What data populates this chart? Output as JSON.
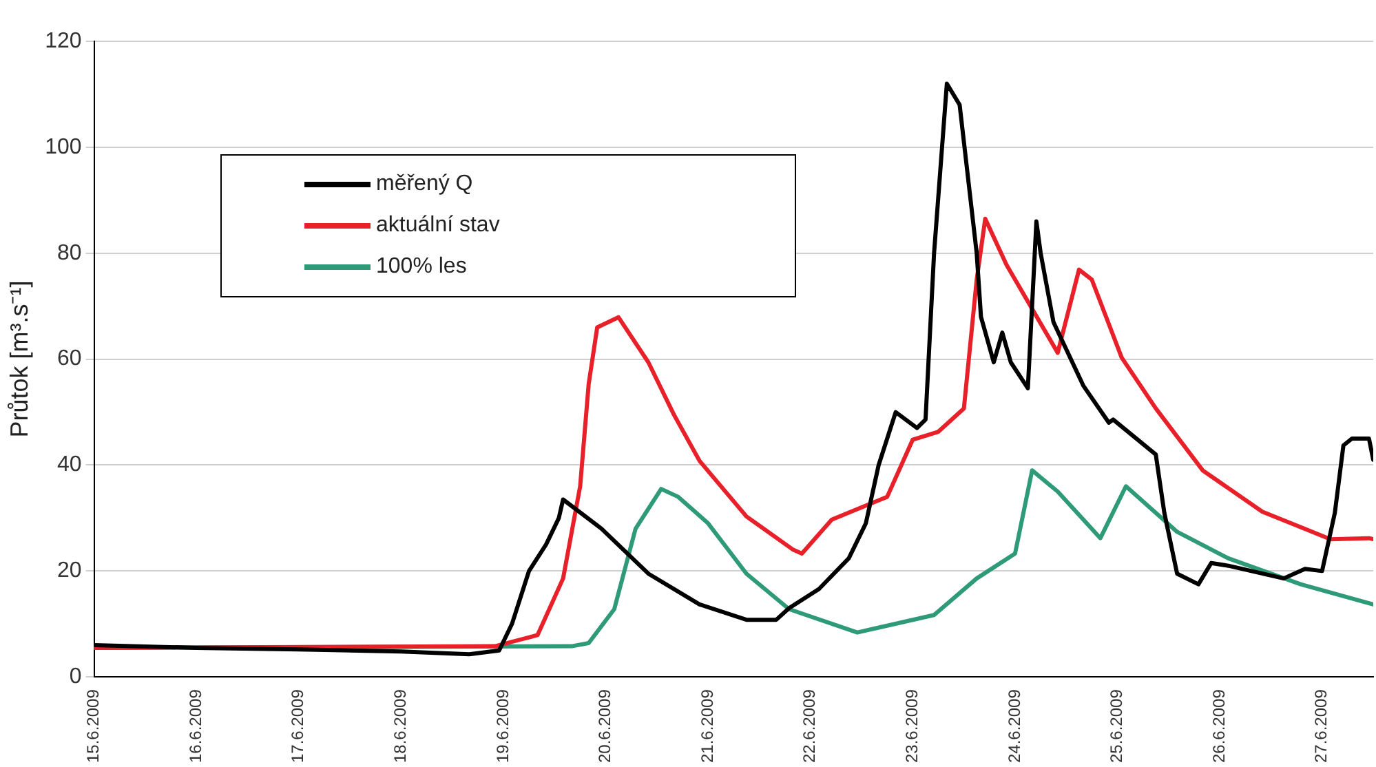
{
  "chart_data": {
    "type": "line",
    "ylabel": "Průtok [m³.s⁻¹]",
    "xlim": [
      "2009-06-15",
      "2009-06-27T12:00"
    ],
    "xticks": [
      {
        "value": "2009-06-15",
        "label": "15.6.2009"
      },
      {
        "value": "2009-06-16",
        "label": "16.6.2009"
      },
      {
        "value": "2009-06-17",
        "label": "17.6.2009"
      },
      {
        "value": "2009-06-18",
        "label": "18.6.2009"
      },
      {
        "value": "2009-06-19",
        "label": "19.6.2009"
      },
      {
        "value": "2009-06-20",
        "label": "20.6.2009"
      },
      {
        "value": "2009-06-21",
        "label": "21.6.2009"
      },
      {
        "value": "2009-06-22",
        "label": "22.6.2009"
      },
      {
        "value": "2009-06-23",
        "label": "23.6.2009"
      },
      {
        "value": "2009-06-24",
        "label": "24.6.2009"
      },
      {
        "value": "2009-06-25",
        "label": "25.6.2009"
      },
      {
        "value": "2009-06-26",
        "label": "26.6.2009"
      },
      {
        "value": "2009-06-27",
        "label": "27.6.2009"
      }
    ],
    "ylim": [
      0,
      120
    ],
    "yticks": [
      0,
      20,
      40,
      60,
      80,
      100,
      120
    ],
    "grid": "y",
    "legend": "top left",
    "marker": "none",
    "line_style": "solid",
    "series": [
      {
        "name": "měřený Q",
        "color": "#000000",
        "x": [
          "2009-06-15T00:00",
          "2009-06-16T00:00",
          "2009-06-17T00:00",
          "2009-06-18T00:00",
          "2009-06-18T16:00",
          "2009-06-18T23:00",
          "2009-06-19T02:00",
          "2009-06-19T06:00",
          "2009-06-19T10:00",
          "2009-06-19T13:00",
          "2009-06-19T14:00",
          "2009-06-19T23:00",
          "2009-06-20T10:00",
          "2009-06-20T22:00",
          "2009-06-21T09:00",
          "2009-06-21T16:00",
          "2009-06-21T19:00",
          "2009-06-22T02:00",
          "2009-06-22T09:00",
          "2009-06-22T13:00",
          "2009-06-22T16:00",
          "2009-06-22T20:00",
          "2009-06-23T01:00",
          "2009-06-23T03:00",
          "2009-06-23T05:00",
          "2009-06-23T08:00",
          "2009-06-23T11:00",
          "2009-06-23T15:00",
          "2009-06-23T16:00",
          "2009-06-23T19:00",
          "2009-06-23T21:00",
          "2009-06-23T23:00",
          "2009-06-24T03:00",
          "2009-06-24T05:00",
          "2009-06-24T06:00",
          "2009-06-24T09:00",
          "2009-06-24T16:00",
          "2009-06-24T22:00",
          "2009-06-24T23:00",
          "2009-06-25T09:00",
          "2009-06-25T11:00",
          "2009-06-25T14:00",
          "2009-06-25T19:00",
          "2009-06-25T22:00",
          "2009-06-26T02:00",
          "2009-06-26T15:00",
          "2009-06-26T20:00",
          "2009-06-27T00:00",
          "2009-06-27T03:00",
          "2009-06-27T05:00",
          "2009-06-27T07:00",
          "2009-06-27T11:00",
          "2009-06-27T12:00"
        ],
        "values": [
          6,
          5.5,
          5.2,
          4.8,
          4.3,
          5,
          10,
          20,
          25,
          30,
          33.5,
          28,
          19.5,
          13.7,
          10.8,
          10.8,
          13,
          16.6,
          22.4,
          29,
          40,
          50,
          47,
          48.6,
          80,
          112,
          108,
          80,
          68,
          59.4,
          65,
          59.4,
          54.5,
          86,
          80,
          67,
          55,
          48,
          48.6,
          42,
          31,
          19.5,
          17.5,
          21.5,
          21,
          18.6,
          20.4,
          20,
          31,
          43.7,
          45,
          45,
          41
        ]
      },
      {
        "name": "aktuální stav",
        "color": "#e8202a",
        "x": [
          "2009-06-15T00:00",
          "2009-06-18T22:00",
          "2009-06-19T08:00",
          "2009-06-19T14:00",
          "2009-06-19T18:00",
          "2009-06-19T20:00",
          "2009-06-19T22:00",
          "2009-06-20T03:00",
          "2009-06-20T10:00",
          "2009-06-20T16:00",
          "2009-06-20T22:00",
          "2009-06-21T09:00",
          "2009-06-21T20:00",
          "2009-06-21T22:00",
          "2009-06-22T05:00",
          "2009-06-22T18:00",
          "2009-06-23T00:00",
          "2009-06-23T06:00",
          "2009-06-23T12:00",
          "2009-06-23T15:00",
          "2009-06-23T17:00",
          "2009-06-23T22:00",
          "2009-06-24T10:00",
          "2009-06-24T15:00",
          "2009-06-24T18:00",
          "2009-06-25T01:00",
          "2009-06-25T09:00",
          "2009-06-25T20:00",
          "2009-06-26T10:00",
          "2009-06-27T02:00",
          "2009-06-27T11:00",
          "2009-06-27T12:00"
        ],
        "values": [
          5.5,
          5.8,
          7.9,
          18.6,
          36,
          55.3,
          66,
          67.9,
          59.4,
          49.5,
          40.8,
          30.3,
          24,
          23.3,
          29.7,
          34,
          44.8,
          46.3,
          50.7,
          75,
          86.5,
          77.8,
          61.2,
          76.9,
          75,
          60.3,
          50.7,
          39,
          31.2,
          26,
          26.2,
          26
        ]
      },
      {
        "name": "100% les",
        "color": "#2e9a78",
        "x": [
          "2009-06-15T00:00",
          "2009-06-19T16:00",
          "2009-06-19T20:00",
          "2009-06-20T02:00",
          "2009-06-20T07:00",
          "2009-06-20T13:00",
          "2009-06-20T17:00",
          "2009-06-21T00:00",
          "2009-06-21T09:00",
          "2009-06-21T19:00",
          "2009-06-22T11:00",
          "2009-06-23T05:00",
          "2009-06-23T15:00",
          "2009-06-24T00:00",
          "2009-06-24T04:00",
          "2009-06-24T10:00",
          "2009-06-24T20:00",
          "2009-06-25T02:00",
          "2009-06-25T14:00",
          "2009-06-26T02:00",
          "2009-06-26T19:00",
          "2009-06-27T12:00"
        ],
        "values": [
          5.5,
          5.8,
          6.4,
          12.8,
          28,
          35.5,
          34,
          29,
          19.5,
          12.8,
          8.4,
          11.7,
          18.6,
          23.3,
          39,
          35,
          26.2,
          36,
          27.4,
          22.4,
          17.5,
          13.7
        ]
      }
    ]
  }
}
